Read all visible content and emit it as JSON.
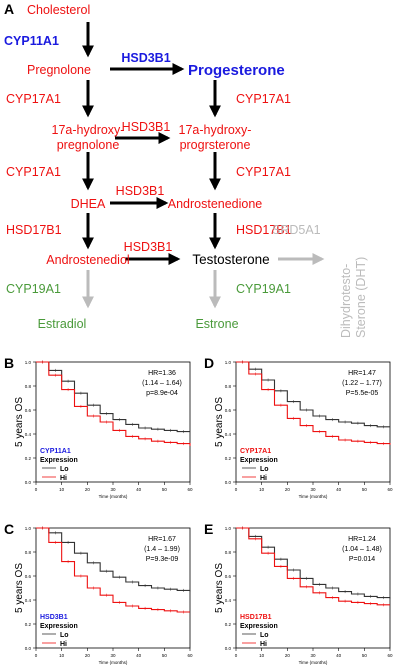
{
  "colors": {
    "red": "#ee1111",
    "blue": "#1a1adf",
    "green": "#4a9a3a",
    "gray": "#bbbbbb",
    "black": "#000000"
  },
  "panel_a": {
    "letter": "A",
    "nodes": {
      "cholesterol": "Cholesterol",
      "pregnolone": "Pregnolone",
      "progesterone": "Progesterone",
      "hydroxy_preg_1": "17a-hydroxy-",
      "hydroxy_preg_2": "pregnolone",
      "hydroxy_prog_1": "17a-hydroxy-",
      "hydroxy_prog_2": "progrsterone",
      "dhea": "DHEA",
      "androstenedione": "Androstenedione",
      "androstenediol": "Androstenediol",
      "testosterone": "Testosterone",
      "dht_1": "Dihydrotesto-",
      "dht_2": "Sterone (DHT)",
      "estradiol": "Estradiol",
      "estrone": "Estrone"
    },
    "enzymes": {
      "cyp11a1": "CYP11A1",
      "hsd3b1_top": "HSD3B1",
      "cyp17a1_left_1": "CYP17A1",
      "cyp17a1_right_1": "CYP17A1",
      "hsd3b1_mid": "HSD3B1",
      "cyp17a1_left_2": "CYP17A1",
      "cyp17a1_right_2": "CYP17A1",
      "hsd3b1_dhea": "HSD3B1",
      "hsd17b1_left": "HSD17B1",
      "hsd17b1_right": "HSD17B1",
      "hsd3b1_bottom": "HSD3B1",
      "srd5a1": "SRD5A1",
      "cyp19a1_left": "CYP19A1",
      "cyp19a1_right": "CYP19A1"
    }
  },
  "km_common": {
    "ylabel": "5 years OS",
    "xlabel": "Time (months)",
    "expression_label": "Expression",
    "lo_label": "Lo",
    "hi_label": "Hi",
    "x_ticks": [
      "0",
      "10",
      "20",
      "30",
      "40",
      "50",
      "60"
    ],
    "y_ticks": [
      "0.0",
      "0.2",
      "0.4",
      "0.6",
      "0.8",
      "1.0"
    ]
  },
  "chart_data": [
    {
      "type": "line",
      "panel": "B",
      "gene": "CYP11A1",
      "gene_color": "#1a1adf",
      "hr": "HR=1.36",
      "ci": "(1.14 – 1.64)",
      "p": "p=8.9e-04",
      "xlim": [
        0,
        60
      ],
      "ylim": [
        0,
        1
      ],
      "series": [
        {
          "name": "Lo",
          "color": "#333333",
          "x": [
            0,
            5,
            10,
            15,
            20,
            25,
            30,
            35,
            40,
            45,
            50,
            55,
            60
          ],
          "y": [
            1.0,
            0.93,
            0.84,
            0.74,
            0.64,
            0.57,
            0.52,
            0.48,
            0.45,
            0.44,
            0.43,
            0.42,
            0.42
          ]
        },
        {
          "name": "Hi",
          "color": "#ee1111",
          "x": [
            0,
            5,
            10,
            15,
            20,
            25,
            30,
            35,
            40,
            45,
            50,
            55,
            60
          ],
          "y": [
            1.0,
            0.89,
            0.77,
            0.63,
            0.55,
            0.5,
            0.43,
            0.38,
            0.36,
            0.34,
            0.33,
            0.32,
            0.3
          ]
        }
      ]
    },
    {
      "type": "line",
      "panel": "D",
      "gene": "CYP17A1",
      "gene_color": "#ee1111",
      "hr": "HR=1.47",
      "ci": "(1.22 – 1.77)",
      "p": "P=5.5e-05",
      "xlim": [
        0,
        60
      ],
      "ylim": [
        0,
        1
      ],
      "series": [
        {
          "name": "Lo",
          "color": "#333333",
          "x": [
            0,
            5,
            10,
            15,
            20,
            25,
            30,
            35,
            40,
            45,
            50,
            55,
            60
          ],
          "y": [
            1.0,
            0.94,
            0.85,
            0.76,
            0.67,
            0.6,
            0.55,
            0.52,
            0.5,
            0.49,
            0.47,
            0.46,
            0.46
          ]
        },
        {
          "name": "Hi",
          "color": "#ee1111",
          "x": [
            0,
            5,
            10,
            15,
            20,
            25,
            30,
            35,
            40,
            45,
            50,
            55,
            60
          ],
          "y": [
            1.0,
            0.9,
            0.77,
            0.64,
            0.53,
            0.47,
            0.42,
            0.38,
            0.35,
            0.34,
            0.33,
            0.32,
            0.31
          ]
        }
      ]
    },
    {
      "type": "line",
      "panel": "C",
      "gene": "HSD3B1",
      "gene_color": "#1a1adf",
      "hr": "HR=1.67",
      "ci": "(1.4 – 1.99)",
      "p": "P=9.3e-09",
      "xlim": [
        0,
        60
      ],
      "ylim": [
        0,
        1
      ],
      "series": [
        {
          "name": "Lo",
          "color": "#333333",
          "x": [
            0,
            5,
            10,
            15,
            20,
            25,
            30,
            35,
            40,
            45,
            50,
            55,
            60
          ],
          "y": [
            1.0,
            0.96,
            0.88,
            0.79,
            0.71,
            0.64,
            0.59,
            0.55,
            0.52,
            0.5,
            0.49,
            0.48,
            0.47
          ]
        },
        {
          "name": "Hi",
          "color": "#ee1111",
          "x": [
            0,
            5,
            10,
            15,
            20,
            25,
            30,
            35,
            40,
            45,
            50,
            55,
            60
          ],
          "y": [
            1.0,
            0.88,
            0.72,
            0.6,
            0.5,
            0.44,
            0.38,
            0.35,
            0.33,
            0.32,
            0.31,
            0.3,
            0.3
          ]
        }
      ]
    },
    {
      "type": "line",
      "panel": "E",
      "gene": "HSD17B1",
      "gene_color": "#ee1111",
      "hr": "HR=1.24",
      "ci": "(1.04 – 1.48)",
      "p": "P=0.014",
      "xlim": [
        0,
        60
      ],
      "ylim": [
        0,
        1
      ],
      "series": [
        {
          "name": "Lo",
          "color": "#333333",
          "x": [
            0,
            5,
            10,
            15,
            20,
            25,
            30,
            35,
            40,
            45,
            50,
            55,
            60
          ],
          "y": [
            1.0,
            0.93,
            0.84,
            0.74,
            0.65,
            0.58,
            0.53,
            0.5,
            0.47,
            0.45,
            0.43,
            0.42,
            0.41
          ]
        },
        {
          "name": "Hi",
          "color": "#ee1111",
          "x": [
            0,
            5,
            10,
            15,
            20,
            25,
            30,
            35,
            40,
            45,
            50,
            55,
            60
          ],
          "y": [
            1.0,
            0.91,
            0.79,
            0.68,
            0.58,
            0.51,
            0.46,
            0.42,
            0.39,
            0.38,
            0.37,
            0.36,
            0.36
          ]
        }
      ]
    }
  ]
}
